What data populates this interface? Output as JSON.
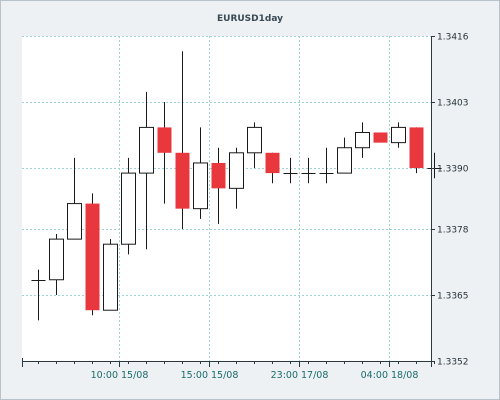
{
  "chart_data": {
    "type": "candlestick",
    "title": "EURUSD1day",
    "xlabel": "",
    "ylabel": "",
    "ylim": [
      1.3352,
      1.3416
    ],
    "y_ticks": [
      "1.3416",
      "1.3403",
      "1.3390",
      "1.3378",
      "1.3365",
      "1.3352"
    ],
    "y_tick_values": [
      1.3416,
      1.3403,
      1.339,
      1.3378,
      1.3365,
      1.3352
    ],
    "x_tick_labels": [
      {
        "label": "10:00 15/08",
        "index": 4.5
      },
      {
        "label": "15:00 15/08",
        "index": 9.5
      },
      {
        "label": "23:00 17/08",
        "index": 14.5
      },
      {
        "label": "04:00 18/08",
        "index": 19.5
      }
    ],
    "grid": true,
    "legend": "none",
    "colors": {
      "up_fill": "#ffffff",
      "down_fill": "#e8383d",
      "outline": "#1a1a1a",
      "grid": "#9ed3d3",
      "plot_bg": "#ffffff",
      "frame_bg": "#eef1f3",
      "axis": "#2a3a44"
    },
    "candles": [
      {
        "open": 1.3368,
        "high": 1.337,
        "low": 1.336,
        "close": 1.3368
      },
      {
        "open": 1.3368,
        "high": 1.3377,
        "low": 1.3365,
        "close": 1.3376
      },
      {
        "open": 1.3376,
        "high": 1.3392,
        "low": 1.3376,
        "close": 1.3383
      },
      {
        "open": 1.3383,
        "high": 1.3385,
        "low": 1.3361,
        "close": 1.3362
      },
      {
        "open": 1.3362,
        "high": 1.3376,
        "low": 1.3362,
        "close": 1.3375
      },
      {
        "open": 1.3375,
        "high": 1.3392,
        "low": 1.3373,
        "close": 1.3389
      },
      {
        "open": 1.3389,
        "high": 1.3405,
        "low": 1.3374,
        "close": 1.3398
      },
      {
        "open": 1.3398,
        "high": 1.3403,
        "low": 1.3383,
        "close": 1.3393
      },
      {
        "open": 1.3393,
        "high": 1.3413,
        "low": 1.3378,
        "close": 1.3382
      },
      {
        "open": 1.3382,
        "high": 1.3398,
        "low": 1.338,
        "close": 1.3391
      },
      {
        "open": 1.3391,
        "high": 1.3394,
        "low": 1.3379,
        "close": 1.3386
      },
      {
        "open": 1.3386,
        "high": 1.3394,
        "low": 1.3382,
        "close": 1.3393
      },
      {
        "open": 1.3393,
        "high": 1.3399,
        "low": 1.339,
        "close": 1.3398
      },
      {
        "open": 1.3393,
        "high": 1.3393,
        "low": 1.3387,
        "close": 1.3389
      },
      {
        "open": 1.3389,
        "high": 1.3392,
        "low": 1.3387,
        "close": 1.3389
      },
      {
        "open": 1.3389,
        "high": 1.3392,
        "low": 1.3387,
        "close": 1.3389
      },
      {
        "open": 1.3389,
        "high": 1.3394,
        "low": 1.3387,
        "close": 1.3389
      },
      {
        "open": 1.3389,
        "high": 1.3396,
        "low": 1.3389,
        "close": 1.3394
      },
      {
        "open": 1.3394,
        "high": 1.3399,
        "low": 1.3392,
        "close": 1.3397
      },
      {
        "open": 1.3397,
        "high": 1.3397,
        "low": 1.3395,
        "close": 1.3395
      },
      {
        "open": 1.3395,
        "high": 1.3399,
        "low": 1.3394,
        "close": 1.3398
      },
      {
        "open": 1.3398,
        "high": 1.3398,
        "low": 1.3389,
        "close": 1.339
      },
      {
        "open": 1.339,
        "high": 1.3393,
        "low": 1.3388,
        "close": 1.339
      }
    ]
  }
}
